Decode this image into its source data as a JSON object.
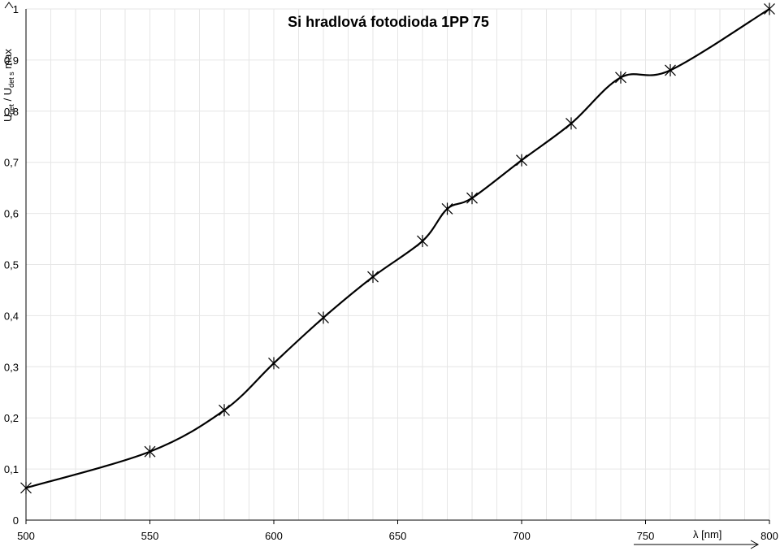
{
  "chart_data": {
    "type": "line",
    "title": "Si hradlová fotodioda 1PP 75",
    "xlabel": "λ [nm]",
    "ylabel": "U_det / U_det s max",
    "ylabel_main": "U",
    "ylabel_sub1": "det",
    "ylabel_mid": " / U",
    "ylabel_sub2": "det s",
    "ylabel_tail": " max",
    "xlim": [
      500,
      800
    ],
    "ylim": [
      0,
      1
    ],
    "x_ticks": [
      500,
      550,
      600,
      650,
      700,
      750,
      800
    ],
    "x_tick_labels": [
      "500",
      "550",
      "600",
      "650",
      "700",
      "750",
      "800"
    ],
    "y_ticks": [
      0,
      0.1,
      0.2,
      0.3,
      0.4,
      0.5,
      0.6,
      0.7,
      0.8,
      0.9,
      1
    ],
    "y_tick_labels": [
      "0",
      "0,1",
      "0,2",
      "0,3",
      "0,4",
      "0,5",
      "0,6",
      "0,7",
      "0,8",
      "0,9",
      "1"
    ],
    "x_minor_step": 10,
    "y_minor_step": 0.1,
    "grid": true,
    "legend": "none",
    "marker": "asterisk",
    "series": [
      {
        "x": [
          500,
          550,
          580,
          600,
          620,
          640,
          660,
          670,
          680,
          700,
          720,
          740,
          760,
          800
        ],
        "values": [
          0.063,
          0.134,
          0.215,
          0.307,
          0.396,
          0.476,
          0.546,
          0.609,
          0.63,
          0.704,
          0.776,
          0.866,
          0.88,
          1.0
        ],
        "color": "#000000"
      }
    ]
  }
}
